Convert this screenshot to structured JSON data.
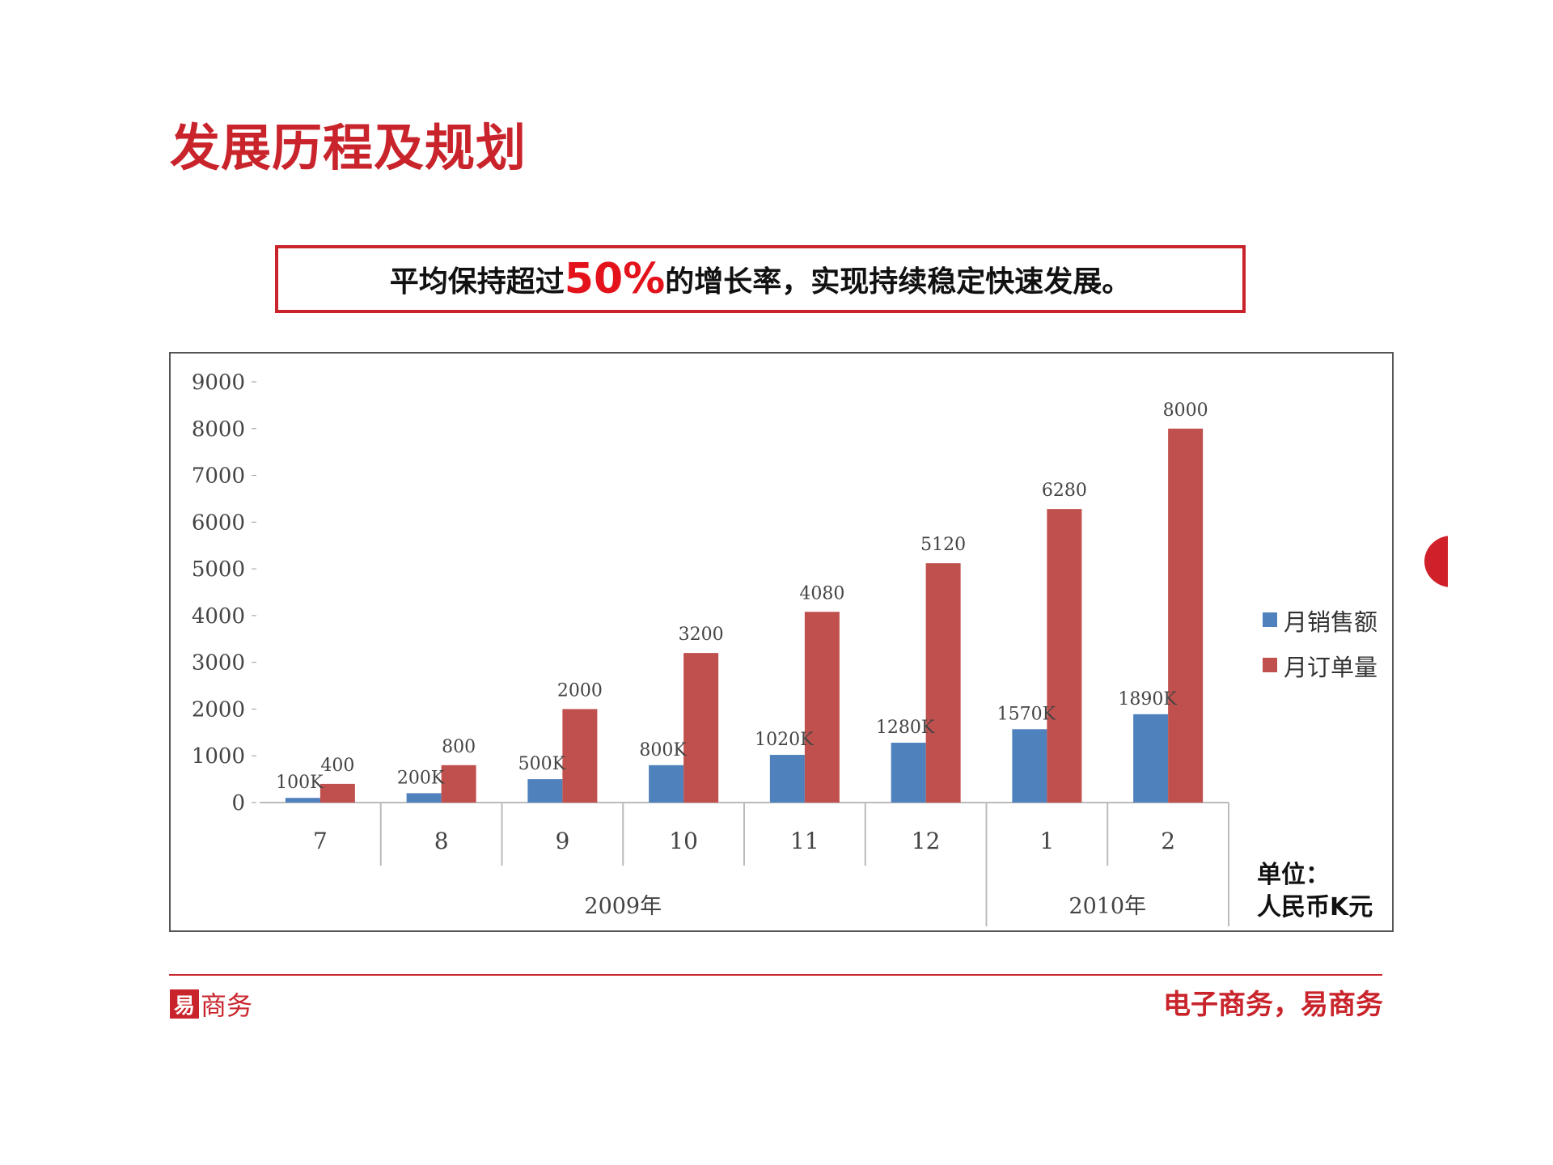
{
  "page": {
    "title": "发展历程及规划",
    "banner": {
      "before": "平均保持超过",
      "highlight": "50%",
      "after": "的增长率，实现持续稳定快速发展。"
    },
    "unit_line1": "单位：",
    "unit_line2": "人民币K元",
    "footer": {
      "logo_text": "商务",
      "logo_mark": "易",
      "slogan": "电子商务，易商务"
    },
    "colors": {
      "accent": "#c9242c",
      "sales": "#4f81bd",
      "orders": "#c0504d"
    }
  },
  "chart_data": {
    "type": "bar",
    "categories": [
      "7",
      "8",
      "9",
      "10",
      "11",
      "12",
      "1",
      "2"
    ],
    "year_groups": [
      {
        "label": "2009年",
        "from": 0,
        "to": 5
      },
      {
        "label": "2010年",
        "from": 6,
        "to": 7
      }
    ],
    "series": [
      {
        "name": "月销售额",
        "values": [
          100,
          200,
          500,
          800,
          1020,
          1280,
          1570,
          1890
        ],
        "labels": [
          "100K",
          "200K",
          "500K",
          "800K",
          "1020K",
          "1280K",
          "1570K",
          "1890K"
        ],
        "color": "#4f81bd"
      },
      {
        "name": "月订单量",
        "values": [
          400,
          800,
          2000,
          3200,
          4080,
          5120,
          6280,
          8000
        ],
        "labels": [
          "400",
          "800",
          "2000",
          "3200",
          "4080",
          "5120",
          "6280",
          "8000"
        ],
        "color": "#c0504d"
      }
    ],
    "yticks": [
      0,
      1000,
      2000,
      3000,
      4000,
      5000,
      6000,
      7000,
      8000,
      9000
    ],
    "ylim": [
      0,
      9000
    ],
    "legend_position": "right"
  }
}
